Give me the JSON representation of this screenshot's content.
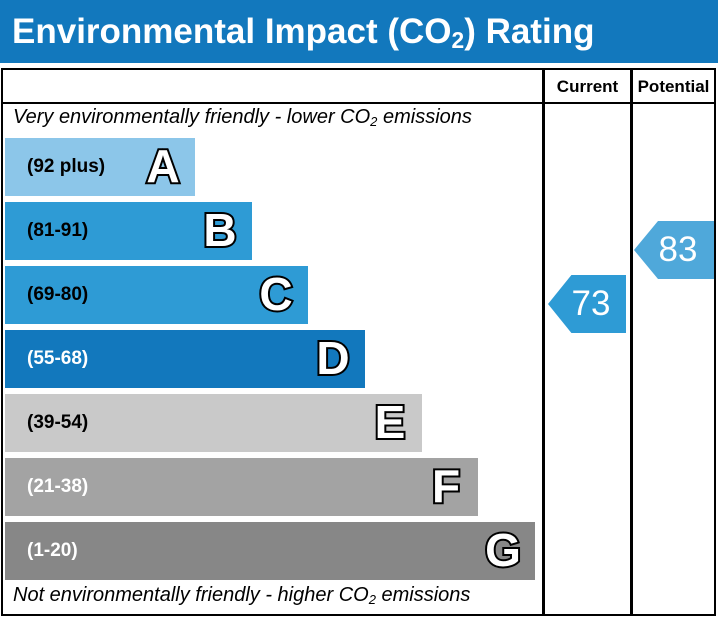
{
  "title": {
    "pre": "Environmental Impact (CO",
    "sub": "2",
    "post": ") Rating"
  },
  "header": {
    "current": "Current",
    "potential": "Potential"
  },
  "notes": {
    "top": {
      "pre": "Very environmentally friendly - lower CO",
      "sub": "2",
      "post": " emissions"
    },
    "bottom": {
      "pre": "Not environmentally friendly - higher CO",
      "sub": "2",
      "post": " emissions"
    }
  },
  "bands": [
    {
      "letter": "A",
      "range": "(92 plus)",
      "color": "#8cc6e9",
      "label_color": "#000000"
    },
    {
      "letter": "B",
      "range": "(81-91)",
      "color": "#2e9bd5",
      "label_color": "#000000"
    },
    {
      "letter": "C",
      "range": "(69-80)",
      "color": "#2e9bd5",
      "label_color": "#000000"
    },
    {
      "letter": "D",
      "range": "(55-68)",
      "color": "#1278bd",
      "label_color": "#ffffff"
    },
    {
      "letter": "E",
      "range": "(39-54)",
      "color": "#c9c9c9",
      "label_color": "#000000"
    },
    {
      "letter": "F",
      "range": "(21-38)",
      "color": "#a3a3a3",
      "label_color": "#ffffff"
    },
    {
      "letter": "G",
      "range": "(1-20)",
      "color": "#878787",
      "label_color": "#ffffff"
    }
  ],
  "ratings": {
    "current": {
      "value": "73",
      "band": "C",
      "color": "#2e9bd5"
    },
    "potential": {
      "value": "83",
      "band": "B",
      "color": "#4fa8da"
    }
  },
  "colors": {
    "title_bar": "#1278bd",
    "border": "#000000"
  },
  "chart_data": {
    "type": "bar",
    "title": "Environmental Impact (CO2) Rating",
    "categories": [
      "A",
      "B",
      "C",
      "D",
      "E",
      "F",
      "G"
    ],
    "band_ranges": [
      "92 plus",
      "81-91",
      "69-80",
      "55-68",
      "39-54",
      "21-38",
      "1-20"
    ],
    "columns": [
      "Current",
      "Potential"
    ],
    "current_rating": 73,
    "current_band": "C",
    "potential_rating": 83,
    "potential_band": "B",
    "scale_min": 1,
    "scale_max": 100,
    "top_annotation": "Very environmentally friendly - lower CO2 emissions",
    "bottom_annotation": "Not environmentally friendly - higher CO2 emissions"
  }
}
